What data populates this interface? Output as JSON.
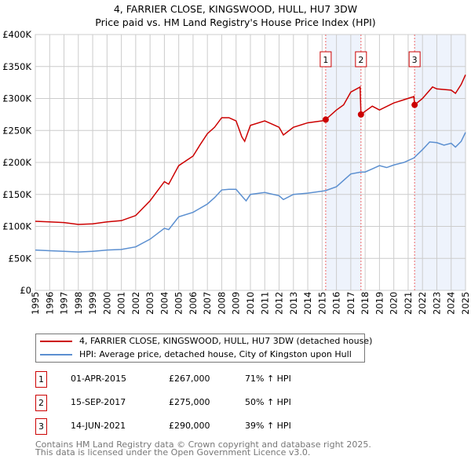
{
  "chart_data": {
    "type": "line",
    "title": "4, FARRIER CLOSE, KINGSWOOD, HULL, HU7 3DW",
    "subtitle": "Price paid vs. HM Land Registry's House Price Index (HPI)",
    "xlim": [
      1995,
      2025
    ],
    "ylim": [
      0,
      400000
    ],
    "yticks": [
      {
        "v": 0,
        "label": "£0"
      },
      {
        "v": 50000,
        "label": "£50K"
      },
      {
        "v": 100000,
        "label": "£100K"
      },
      {
        "v": 150000,
        "label": "£150K"
      },
      {
        "v": 200000,
        "label": "£200K"
      },
      {
        "v": 250000,
        "label": "£250K"
      },
      {
        "v": 300000,
        "label": "£300K"
      },
      {
        "v": 350000,
        "label": "£350K"
      },
      {
        "v": 400000,
        "label": "£400K"
      }
    ],
    "xticks": [
      "1995",
      "1996",
      "1997",
      "1998",
      "1999",
      "2000",
      "2001",
      "2002",
      "2003",
      "2004",
      "2005",
      "2006",
      "2007",
      "2008",
      "2009",
      "2010",
      "2011",
      "2012",
      "2013",
      "2014",
      "2015",
      "2016",
      "2017",
      "2018",
      "2019",
      "2020",
      "2021",
      "2022",
      "2023",
      "2024",
      "2025"
    ],
    "grid": true,
    "shaded": [
      [
        2015.25,
        2017.71
      ],
      [
        2021.45,
        2025
      ]
    ],
    "series": [
      {
        "name": "4, FARRIER CLOSE, KINGSWOOD, HULL, HU7 3DW (detached house)",
        "color": "#cc0000",
        "x": [
          1995,
          1996,
          1997,
          1998,
          1999,
          2000,
          2001,
          2002,
          2003,
          2004,
          2004.3,
          2005,
          2006,
          2006.5,
          2007,
          2007.5,
          2008,
          2008.5,
          2009,
          2009.4,
          2009.6,
          2010,
          2011,
          2011.5,
          2012,
          2012.3,
          2013,
          2014,
          2015,
          2015.25,
          2016,
          2016.5,
          2017,
          2017.65,
          2017.71,
          2018,
          2018.5,
          2019,
          2020,
          2020.7,
          2021.4,
          2021.45,
          2022,
          2022.7,
          2023,
          2024,
          2024.3,
          2024.7,
          2025
        ],
        "y": [
          108000,
          107000,
          106000,
          103000,
          104000,
          107000,
          109000,
          117000,
          140000,
          170000,
          166000,
          195000,
          210000,
          228000,
          245000,
          255000,
          270000,
          270000,
          265000,
          240000,
          233000,
          258000,
          265000,
          260000,
          255000,
          243000,
          255000,
          262000,
          265000,
          267000,
          282000,
          290000,
          310000,
          318000,
          275000,
          280000,
          288000,
          282000,
          293000,
          298000,
          303000,
          290000,
          300000,
          318000,
          315000,
          313000,
          308000,
          322000,
          337000
        ]
      },
      {
        "name": "HPI: Average price, detached house, City of Kingston upon Hull",
        "color": "#5b8fd0",
        "x": [
          1995,
          1996,
          1997,
          1998,
          1999,
          2000,
          2001,
          2002,
          2003,
          2004,
          2004.3,
          2005,
          2006,
          2007,
          2007.5,
          2008,
          2008.5,
          2009,
          2009.5,
          2009.7,
          2010,
          2011,
          2012,
          2012.3,
          2013,
          2014,
          2015,
          2015.25,
          2016,
          2016.5,
          2017,
          2017.7,
          2018,
          2018.5,
          2019,
          2019.5,
          2020,
          2020.7,
          2021.4,
          2022,
          2022.5,
          2023,
          2023.5,
          2024,
          2024.3,
          2024.7,
          2025
        ],
        "y": [
          63000,
          62000,
          61000,
          60000,
          61000,
          63000,
          64000,
          68000,
          80000,
          97000,
          95000,
          115000,
          122000,
          135000,
          145000,
          157000,
          158000,
          158000,
          145000,
          140000,
          150000,
          153000,
          148000,
          142000,
          150000,
          152000,
          155000,
          156000,
          162000,
          172000,
          182000,
          185000,
          185000,
          190000,
          195000,
          192000,
          196000,
          200000,
          207000,
          220000,
          232000,
          231000,
          227000,
          230000,
          224000,
          233000,
          247000
        ]
      }
    ],
    "sales": [
      {
        "num": "1",
        "x": 2015.25,
        "y": 267000,
        "date": "01-APR-2015",
        "price": "£267,000",
        "hpi": "71% ↑ HPI"
      },
      {
        "num": "2",
        "x": 2017.71,
        "y": 275000,
        "date": "15-SEP-2017",
        "price": "£275,000",
        "hpi": "50% ↑ HPI"
      },
      {
        "num": "3",
        "x": 2021.45,
        "y": 290000,
        "date": "14-JUN-2021",
        "price": "£290,000",
        "hpi": "39% ↑ HPI"
      }
    ]
  },
  "footer": [
    "Contains HM Land Registry data © Crown copyright and database right 2025.",
    "This data is licensed under the Open Government Licence v3.0."
  ]
}
